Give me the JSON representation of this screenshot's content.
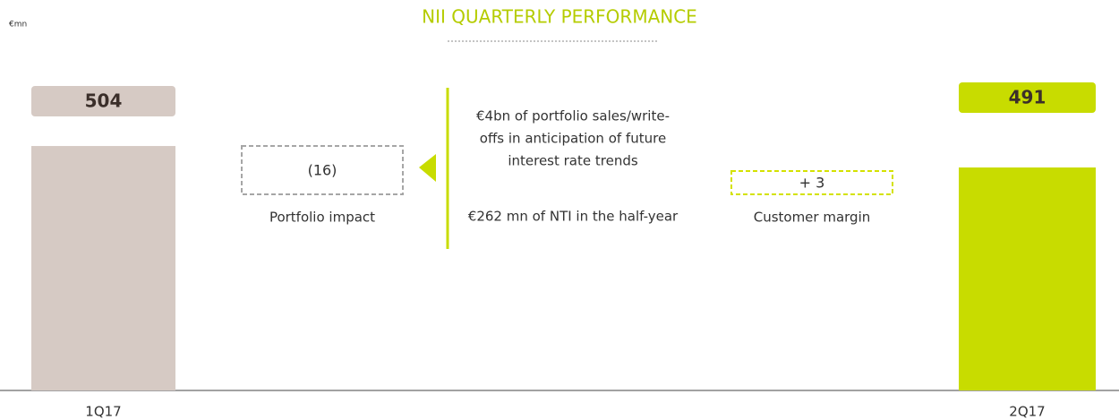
{
  "chart_data": {
    "type": "waterfall",
    "title": "NII QUARTERLY PERFORMANCE",
    "unit_label": "€mn",
    "categories": [
      "1Q17",
      "Portfolio impact",
      "Customer margin",
      "2Q17"
    ],
    "values": [
      504,
      -16,
      3,
      491
    ],
    "value_labels": [
      "504",
      "(16)",
      "+ 3",
      "491"
    ],
    "colors": [
      "#d6cac4",
      "#a6a6a6",
      "#d4e200",
      "#c8dc00"
    ],
    "ylim": [
      356,
      600
    ],
    "annotations": [
      "€4bn of portfolio sales/write-",
      "offs in anticipation of future",
      "interest rate trends",
      "€262 mn of NTI in the half-year"
    ]
  }
}
